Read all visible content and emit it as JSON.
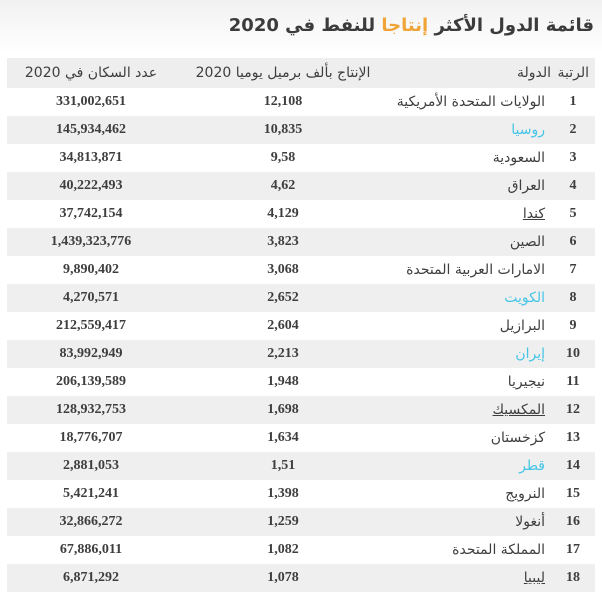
{
  "page": {
    "title_prefix": "قائمة الدول الأكثر",
    "title_highlight": "إنتاجا",
    "title_suffix": "للنفط في 2020"
  },
  "colors": {
    "highlight": "#f0a437",
    "link": "#45c5e6",
    "text": "#3e3e3e",
    "header_bg": "#eeeeee",
    "stripe_bg": "#efefef"
  },
  "table": {
    "headers": {
      "rank": "الرتبة",
      "country": "الدولة",
      "production": "الإنتاج بألف برميل يوميا 2020",
      "population": "عدد السكان في 2020"
    },
    "rows": [
      {
        "rank": "1",
        "country": "الولايات المتحدة الأمريكية",
        "production": "12,108",
        "population": "331,002,651",
        "style": "plain"
      },
      {
        "rank": "2",
        "country": "روسيا",
        "production": "10,835",
        "population": "145,934,462",
        "style": "link"
      },
      {
        "rank": "3",
        "country": "السعودية",
        "production": "9,58",
        "population": "34,813,871",
        "style": "plain"
      },
      {
        "rank": "4",
        "country": "العراق",
        "production": "4,62",
        "population": "40,222,493",
        "style": "plain"
      },
      {
        "rank": "5",
        "country": "كندا",
        "production": "4,129",
        "population": "37,742,154",
        "style": "underline"
      },
      {
        "rank": "6",
        "country": "الصين",
        "production": "3,823",
        "population": "1,439,323,776",
        "style": "plain"
      },
      {
        "rank": "7",
        "country": "الامارات العربية المتحدة",
        "production": "3,068",
        "population": "9,890,402",
        "style": "plain"
      },
      {
        "rank": "8",
        "country": "الكويت",
        "production": "2,652",
        "population": "4,270,571",
        "style": "link"
      },
      {
        "rank": "9",
        "country": "البرازيل",
        "production": "2,604",
        "population": "212,559,417",
        "style": "plain"
      },
      {
        "rank": "10",
        "country": "إيران",
        "production": "2,213",
        "population": "83,992,949",
        "style": "link"
      },
      {
        "rank": "11",
        "country": "نيجيريا",
        "production": "1,948",
        "population": "206,139,589",
        "style": "plain"
      },
      {
        "rank": "12",
        "country": "المكسيك",
        "production": "1,698",
        "population": "128,932,753",
        "style": "underline"
      },
      {
        "rank": "13",
        "country": "كزخستان",
        "production": "1,634",
        "population": "18,776,707",
        "style": "plain"
      },
      {
        "rank": "14",
        "country": "قطر",
        "production": "1,51",
        "population": "2,881,053",
        "style": "link"
      },
      {
        "rank": "15",
        "country": "النرويج",
        "production": "1,398",
        "population": "5,421,241",
        "style": "plain"
      },
      {
        "rank": "16",
        "country": "أنغولا",
        "production": "1,259",
        "population": "32,866,272",
        "style": "plain"
      },
      {
        "rank": "17",
        "country": "المملكة المتحدة",
        "production": "1,082",
        "population": "67,886,011",
        "style": "plain"
      },
      {
        "rank": "18",
        "country": "ليبيا",
        "production": "1,078",
        "population": "6,871,292",
        "style": "underline"
      }
    ]
  }
}
